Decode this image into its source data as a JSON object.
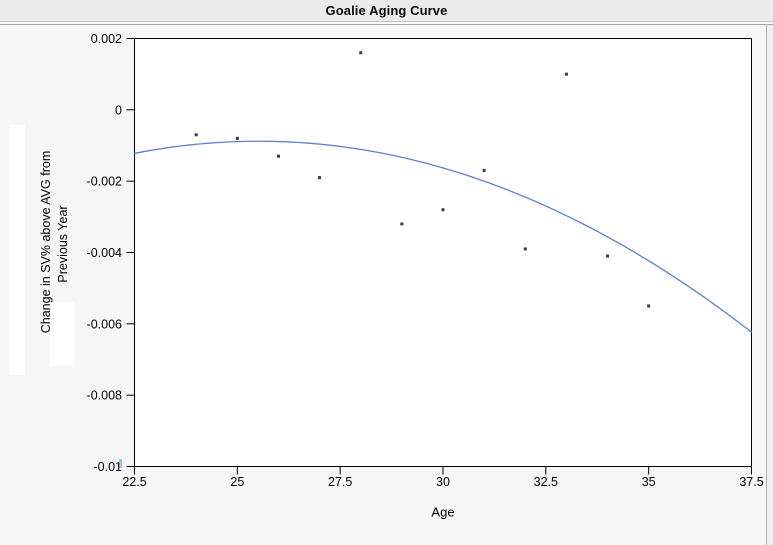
{
  "header": {
    "title": "Goalie Aging Curve"
  },
  "chart_data": {
    "type": "scatter",
    "title": "Goalie Aging Curve",
    "xlabel": "Age",
    "ylabel": "Change in SV% above AVG from Previous Year",
    "ylabel_lines": [
      "Change in SV% above AVG from",
      "Previous Year"
    ],
    "xlim": [
      22.5,
      37.5
    ],
    "ylim": [
      -0.01,
      0.002
    ],
    "grid": false,
    "legend": "none",
    "x_ticks": [
      {
        "v": 22.5,
        "label": "22.5"
      },
      {
        "v": 25,
        "label": "25"
      },
      {
        "v": 27.5,
        "label": "27.5"
      },
      {
        "v": 30,
        "label": "30"
      },
      {
        "v": 32.5,
        "label": "32.5"
      },
      {
        "v": 35,
        "label": "35"
      },
      {
        "v": 37.5,
        "label": "37.5"
      }
    ],
    "y_ticks": [
      {
        "v": 0.002,
        "label": "0.002"
      },
      {
        "v": 0,
        "label": "0"
      },
      {
        "v": -0.002,
        "label": "-0.002"
      },
      {
        "v": -0.004,
        "label": "-0.004"
      },
      {
        "v": -0.006,
        "label": "-0.006"
      },
      {
        "v": -0.008,
        "label": "-0.008"
      },
      {
        "v": -0.01,
        "label": "-0.01"
      }
    ],
    "series": [
      {
        "name": "observed-change-in-sv-pct",
        "type": "scatter",
        "marker": "square",
        "points": [
          [
            24,
            -0.0007
          ],
          [
            25,
            -0.0008
          ],
          [
            26,
            -0.0013
          ],
          [
            27,
            -0.0019
          ],
          [
            28,
            0.0016
          ],
          [
            29,
            -0.0032
          ],
          [
            30,
            -0.0028
          ],
          [
            31,
            -0.0017
          ],
          [
            32,
            -0.0039
          ],
          [
            33,
            0.001
          ],
          [
            34,
            -0.0041
          ],
          [
            35,
            -0.0055
          ]
        ]
      },
      {
        "name": "quadratic-fit",
        "type": "line",
        "fit": {
          "form": "a*(x-h)^2+k",
          "a": -3.73e-05,
          "h": 25.52,
          "k": -0.00088
        },
        "x_range": [
          22.5,
          37.5
        ]
      }
    ],
    "colors": {
      "fit_line": "#5b80d0",
      "marker": "#3a3a3a",
      "frame": "#000000",
      "plot_bg": "#ffffff"
    }
  }
}
